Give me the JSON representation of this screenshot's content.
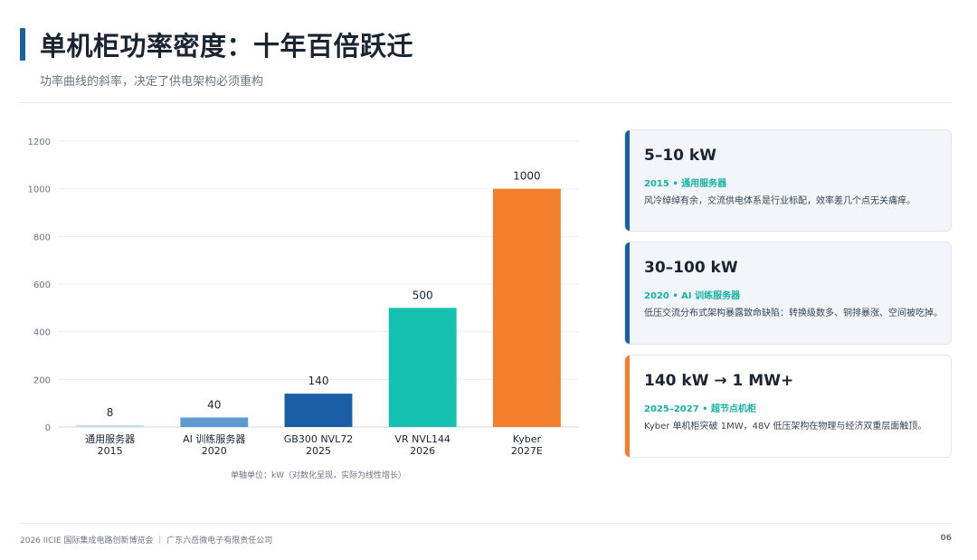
{
  "header": {
    "title": "单机柜功率密度：十年百倍跃迁",
    "subtitle": "功率曲线的斜率，决定了供电架构必须重构"
  },
  "chart_data": {
    "type": "bar",
    "categories": [
      {
        "name": "通用服务器",
        "year": "2015"
      },
      {
        "name": "AI 训练服务器",
        "year": "2020"
      },
      {
        "name": "GB300 NVL72",
        "year": "2025"
      },
      {
        "name": "VR NVL144",
        "year": "2026"
      },
      {
        "name": "Kyber",
        "year": "2027E"
      }
    ],
    "values": [
      8,
      40,
      140,
      500,
      1000
    ],
    "data_labels": [
      "8",
      "40",
      "140",
      "500",
      "1000"
    ],
    "colors": [
      "#c9dcee",
      "#5d9ad0",
      "#1a5fa6",
      "#15c2b2",
      "#f47f2a"
    ],
    "ylim": [
      0,
      1200
    ],
    "yticks": [
      0,
      200,
      400,
      600,
      800,
      1000,
      1200
    ],
    "grid": true,
    "note": "单轴单位：kW（对数化呈现，实际为线性增长）"
  },
  "cards": [
    {
      "value": "5–10 kW",
      "tag": "2015 • 通用服务器",
      "desc": "风冷绰绰有余，交流供电体系是行业标配，效率差几个点无关痛痒。"
    },
    {
      "value": "30–100 kW",
      "tag": "2020 • AI 训练服务器",
      "desc": "低压交流分布式架构暴露致命缺陷：转换级数多、铜排暴涨、空间被吃掉。"
    },
    {
      "value": "140 kW → 1 MW+",
      "tag": "2025–2027 • 超节点机柜",
      "desc": "Kyber 单机柜突破 1MW，48V 低压架构在物理与经济双重层面触顶。"
    }
  ],
  "footer": {
    "text": "2026 IICIE 国际集成电路创新博览会 ｜ 广东六岳微电子有限责任公司",
    "page": "06"
  }
}
